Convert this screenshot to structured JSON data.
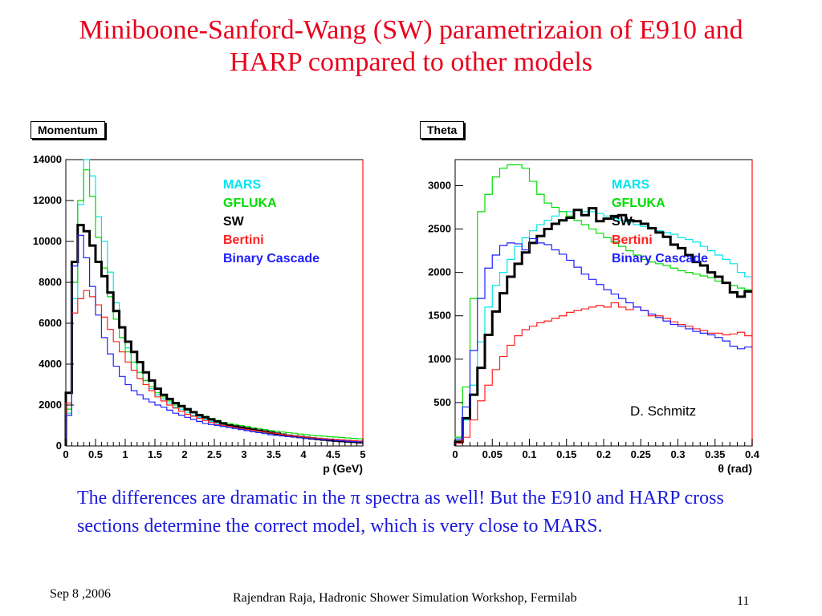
{
  "slide": {
    "title_line1": "Miniboone-Sanford-Wang (SW) parametrizaion of E910 and",
    "title_line2": "HARP compared to other models",
    "body": "The differences are dramatic in the π spectra as well! But the E910 and HARP cross sections determine the correct model, which is very close to MARS.",
    "footer_date": "Sep 8 ,2006",
    "footer_center": "Rajendran Raja,  Hadronic Shower Simulation Workshop, Fermilab",
    "page_number": "11"
  },
  "chart_data": [
    {
      "type": "line",
      "hist_title": "Momentum",
      "xlabel": "p (GeV)",
      "ylabel": "",
      "xlim": [
        0,
        5
      ],
      "ylim": [
        0,
        14000
      ],
      "xticks": [
        "0",
        "0.5",
        "1",
        "1.5",
        "2",
        "2.5",
        "3",
        "3.5",
        "4",
        "4.5",
        "5"
      ],
      "yticks": [
        "0",
        "2000",
        "4000",
        "6000",
        "8000",
        "10000",
        "12000",
        "14000"
      ],
      "legend_position": "top-right",
      "bin_width": 0.1,
      "series": [
        {
          "name": "MARS",
          "color": "#00e5ee",
          "width": 1.2,
          "values": [
            1600,
            7200,
            11800,
            14000,
            13200,
            11200,
            10000,
            8500,
            7000,
            5800,
            4800,
            4100,
            3600,
            3200,
            2800,
            2500,
            2300,
            2100,
            1900,
            1800,
            1650,
            1500,
            1400,
            1300,
            1200,
            1100,
            1000,
            950,
            900,
            850,
            800,
            750,
            700,
            650,
            600,
            550,
            520,
            480,
            450,
            420,
            400,
            380,
            350,
            330,
            300,
            280,
            260,
            240,
            220,
            200
          ]
        },
        {
          "name": "GFLUKA",
          "color": "#00dd00",
          "width": 1.2,
          "values": [
            1800,
            8000,
            12000,
            13500,
            12200,
            10200,
            8700,
            7300,
            6200,
            5300,
            4600,
            4100,
            3600,
            3200,
            2900,
            2600,
            2400,
            2200,
            2000,
            1900,
            1750,
            1650,
            1550,
            1450,
            1350,
            1250,
            1150,
            1100,
            1050,
            1000,
            950,
            900,
            850,
            800,
            750,
            720,
            680,
            650,
            620,
            580,
            550,
            520,
            500,
            480,
            450,
            430,
            410,
            390,
            370,
            350
          ]
        },
        {
          "name": "SW",
          "color": "#000000",
          "width": 3,
          "values": [
            2600,
            9000,
            10800,
            10500,
            9800,
            9000,
            8300,
            7500,
            6600,
            5800,
            5100,
            4600,
            4100,
            3600,
            3200,
            2800,
            2500,
            2300,
            2100,
            1950,
            1800,
            1650,
            1500,
            1400,
            1300,
            1200,
            1100,
            1000,
            950,
            900,
            850,
            800,
            750,
            700,
            650,
            600,
            550,
            500,
            470,
            440,
            400,
            370,
            340,
            310,
            280,
            260,
            240,
            220,
            200,
            180
          ]
        },
        {
          "name": "Bertini",
          "color": "#ff2020",
          "width": 1.2,
          "values": [
            2100,
            6500,
            7200,
            7600,
            7300,
            6900,
            6300,
            5700,
            5100,
            4600,
            4100,
            3700,
            3300,
            3000,
            2700,
            2400,
            2200,
            2000,
            1850,
            1700,
            1550,
            1450,
            1350,
            1250,
            1150,
            1050,
            1000,
            950,
            900,
            850,
            800,
            760,
            720,
            680,
            640,
            600,
            560,
            520,
            490,
            460,
            430,
            400,
            380,
            360,
            340,
            320,
            300,
            280,
            260,
            240
          ]
        },
        {
          "name": "Binary Cascade",
          "color": "#2020ff",
          "width": 1.2,
          "values": [
            1500,
            8800,
            10300,
            9200,
            7800,
            6400,
            5300,
            4500,
            3900,
            3400,
            3000,
            2700,
            2500,
            2300,
            2150,
            2000,
            1900,
            1750,
            1600,
            1500,
            1400,
            1300,
            1200,
            1100,
            1050,
            1000,
            950,
            900,
            850,
            800,
            750,
            700,
            650,
            600,
            550,
            520,
            490,
            460,
            430,
            400,
            370,
            350,
            330,
            310,
            290,
            270,
            250,
            230,
            210,
            190
          ]
        }
      ]
    },
    {
      "type": "line",
      "hist_title": "Theta",
      "xlabel": "θ (rad)",
      "ylabel": "",
      "xlim": [
        0,
        0.4
      ],
      "ylim": [
        0,
        3300
      ],
      "xticks": [
        "0",
        "0.05",
        "0.1",
        "0.15",
        "0.2",
        "0.25",
        "0.3",
        "0.35",
        "0.4"
      ],
      "yticks": [
        "500",
        "1000",
        "1500",
        "2000",
        "2500",
        "3000"
      ],
      "legend_position": "top-right",
      "annotation": "D. Schmitz",
      "bin_width": 0.01,
      "series": [
        {
          "name": "MARS",
          "color": "#00e5ee",
          "width": 1.2,
          "values": [
            100,
            300,
            700,
            1200,
            1600,
            1850,
            2000,
            2150,
            2300,
            2400,
            2480,
            2550,
            2600,
            2650,
            2700,
            2700,
            2720,
            2700,
            2700,
            2680,
            2650,
            2620,
            2600,
            2580,
            2550,
            2530,
            2500,
            2480,
            2460,
            2440,
            2400,
            2380,
            2350,
            2300,
            2250,
            2200,
            2150,
            2100,
            2000,
            1950
          ]
        },
        {
          "name": "GFLUKA",
          "color": "#00dd00",
          "width": 1.2,
          "values": [
            100,
            680,
            1700,
            2700,
            2900,
            3100,
            3200,
            3240,
            3240,
            3200,
            3050,
            2900,
            2800,
            2750,
            2700,
            2650,
            2600,
            2550,
            2500,
            2450,
            2400,
            2350,
            2300,
            2250,
            2200,
            2150,
            2120,
            2100,
            2080,
            2050,
            2020,
            2000,
            1980,
            1960,
            1940,
            1900,
            1880,
            1850,
            1820,
            1800
          ]
        },
        {
          "name": "SW",
          "color": "#000000",
          "width": 3,
          "values": [
            50,
            320,
            590,
            900,
            1280,
            1550,
            1760,
            1950,
            2100,
            2230,
            2340,
            2420,
            2500,
            2560,
            2600,
            2630,
            2720,
            2660,
            2740,
            2590,
            2620,
            2650,
            2660,
            2600,
            2590,
            2560,
            2510,
            2460,
            2410,
            2320,
            2280,
            2200,
            2120,
            2080,
            2000,
            1950,
            1880,
            1770,
            1720,
            1780
          ]
        },
        {
          "name": "Bertini",
          "color": "#ff2020",
          "width": 1.2,
          "values": [
            30,
            100,
            300,
            520,
            700,
            880,
            1030,
            1160,
            1270,
            1340,
            1380,
            1420,
            1440,
            1470,
            1500,
            1540,
            1560,
            1580,
            1600,
            1620,
            1600,
            1650,
            1600,
            1570,
            1600,
            1560,
            1500,
            1500,
            1470,
            1430,
            1400,
            1380,
            1350,
            1330,
            1300,
            1300,
            1280,
            1290,
            1310,
            1270
          ]
        },
        {
          "name": "Binary Cascade",
          "color": "#2020ff",
          "width": 1.2,
          "values": [
            80,
            450,
            1100,
            1700,
            2050,
            2200,
            2310,
            2340,
            2330,
            2260,
            2390,
            2340,
            2320,
            2260,
            2210,
            2140,
            2060,
            1980,
            1920,
            1860,
            1800,
            1750,
            1700,
            1650,
            1600,
            1560,
            1520,
            1480,
            1440,
            1400,
            1380,
            1350,
            1320,
            1300,
            1280,
            1250,
            1210,
            1150,
            1120,
            1140
          ]
        }
      ]
    }
  ]
}
